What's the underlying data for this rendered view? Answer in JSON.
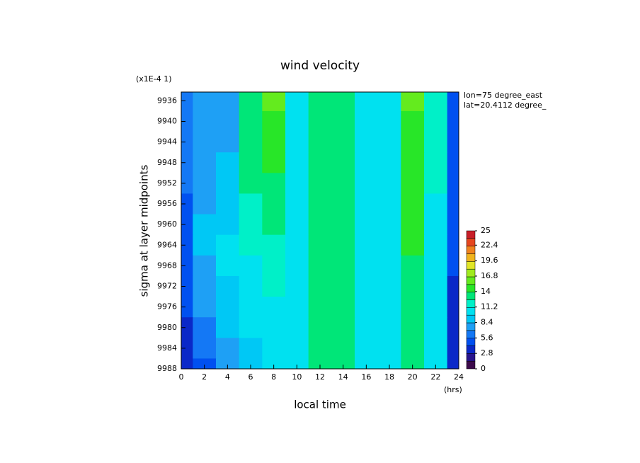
{
  "chart_data": {
    "type": "contour",
    "title": "wind velocity",
    "scale_note": "(x1E-4 1)",
    "ylabel": "sigma at layer midpoints",
    "xlabel": "local time",
    "xunit": "(hrs)",
    "annotations": [
      "lon=75 degree_east",
      "lat=20.4112 degree_"
    ],
    "x": [
      0,
      2,
      4,
      6,
      8,
      10,
      12,
      14,
      16,
      18,
      20,
      22,
      24
    ],
    "y": [
      9936,
      9940,
      9944,
      9948,
      9952,
      9956,
      9960,
      9964,
      9968,
      9972,
      9976,
      9980,
      9984,
      9988
    ],
    "values": [
      [
        6.5,
        7.0,
        7.2,
        13.5,
        15.5,
        10.0,
        12.8,
        12.8,
        9.8,
        10.2,
        15.5,
        12.0,
        5.0
      ],
      [
        6.3,
        7.2,
        7.5,
        13.2,
        15.0,
        10.0,
        12.8,
        12.8,
        9.8,
        10.2,
        15.2,
        11.8,
        4.9
      ],
      [
        6.0,
        7.5,
        8.2,
        13.0,
        14.5,
        10.0,
        12.8,
        12.8,
        9.8,
        10.2,
        15.0,
        11.6,
        4.8
      ],
      [
        5.8,
        7.8,
        8.6,
        12.8,
        14.0,
        10.0,
        12.8,
        12.8,
        9.8,
        10.2,
        14.8,
        11.4,
        4.7
      ],
      [
        5.6,
        8.0,
        9.0,
        12.5,
        13.6,
        10.0,
        12.8,
        12.8,
        9.8,
        10.2,
        14.6,
        11.2,
        4.6
      ],
      [
        5.4,
        8.2,
        9.3,
        12.3,
        13.2,
        10.0,
        12.8,
        12.8,
        9.8,
        10.2,
        14.4,
        11.0,
        4.5
      ],
      [
        5.2,
        8.5,
        9.6,
        12.0,
        12.8,
        10.0,
        12.8,
        12.8,
        9.8,
        10.2,
        14.2,
        10.9,
        4.4
      ],
      [
        5.0,
        8.5,
        9.8,
        11.5,
        12.4,
        10.0,
        12.8,
        12.8,
        9.8,
        10.2,
        14.0,
        10.8,
        4.3
      ],
      [
        4.8,
        8.3,
        9.8,
        11.0,
        12.0,
        10.0,
        12.8,
        12.8,
        9.8,
        10.2,
        13.8,
        10.6,
        4.2
      ],
      [
        4.5,
        8.0,
        9.6,
        10.5,
        11.5,
        10.0,
        12.8,
        12.8,
        9.8,
        10.2,
        13.6,
        10.5,
        4.0
      ],
      [
        4.2,
        7.5,
        9.2,
        10.2,
        11.0,
        10.0,
        12.8,
        12.8,
        9.8,
        10.2,
        13.4,
        10.4,
        3.9
      ],
      [
        3.8,
        6.8,
        8.8,
        9.9,
        10.6,
        10.0,
        12.8,
        12.8,
        9.8,
        10.2,
        13.2,
        10.2,
        3.8
      ],
      [
        3.3,
        6.0,
        8.2,
        9.7,
        10.2,
        10.0,
        12.8,
        12.8,
        9.8,
        10.2,
        13.1,
        10.1,
        3.6
      ],
      [
        2.8,
        5.2,
        7.6,
        9.5,
        9.9,
        10.0,
        12.8,
        12.8,
        9.8,
        10.2,
        13.0,
        10.0,
        3.5
      ]
    ],
    "xlim": [
      0,
      24
    ],
    "xticks": [
      0,
      2,
      4,
      6,
      8,
      10,
      12,
      14,
      16,
      18,
      20,
      22,
      24
    ],
    "ylim": [
      9988,
      9934.3
    ],
    "yticks": [
      9936,
      9940,
      9944,
      9948,
      9952,
      9956,
      9960,
      9964,
      9968,
      9972,
      9976,
      9980,
      9984,
      9988
    ],
    "colorbar_lim": [
      0,
      25
    ],
    "colorbar_ticks": [
      0,
      2.8,
      5.6,
      8.4,
      11.2,
      14,
      16.8,
      19.6,
      22.4,
      25
    ],
    "colors": [
      "#3c0a4b",
      "#28148c",
      "#0a28c8",
      "#0050f0",
      "#1478f5",
      "#1ea0f5",
      "#00c8f5",
      "#00e1f0",
      "#00f0c8",
      "#00e678",
      "#28e628",
      "#64eb1e",
      "#a0eb1e",
      "#e1e628",
      "#f0b41e",
      "#f0821e",
      "#e6461e",
      "#c81e28"
    ]
  }
}
